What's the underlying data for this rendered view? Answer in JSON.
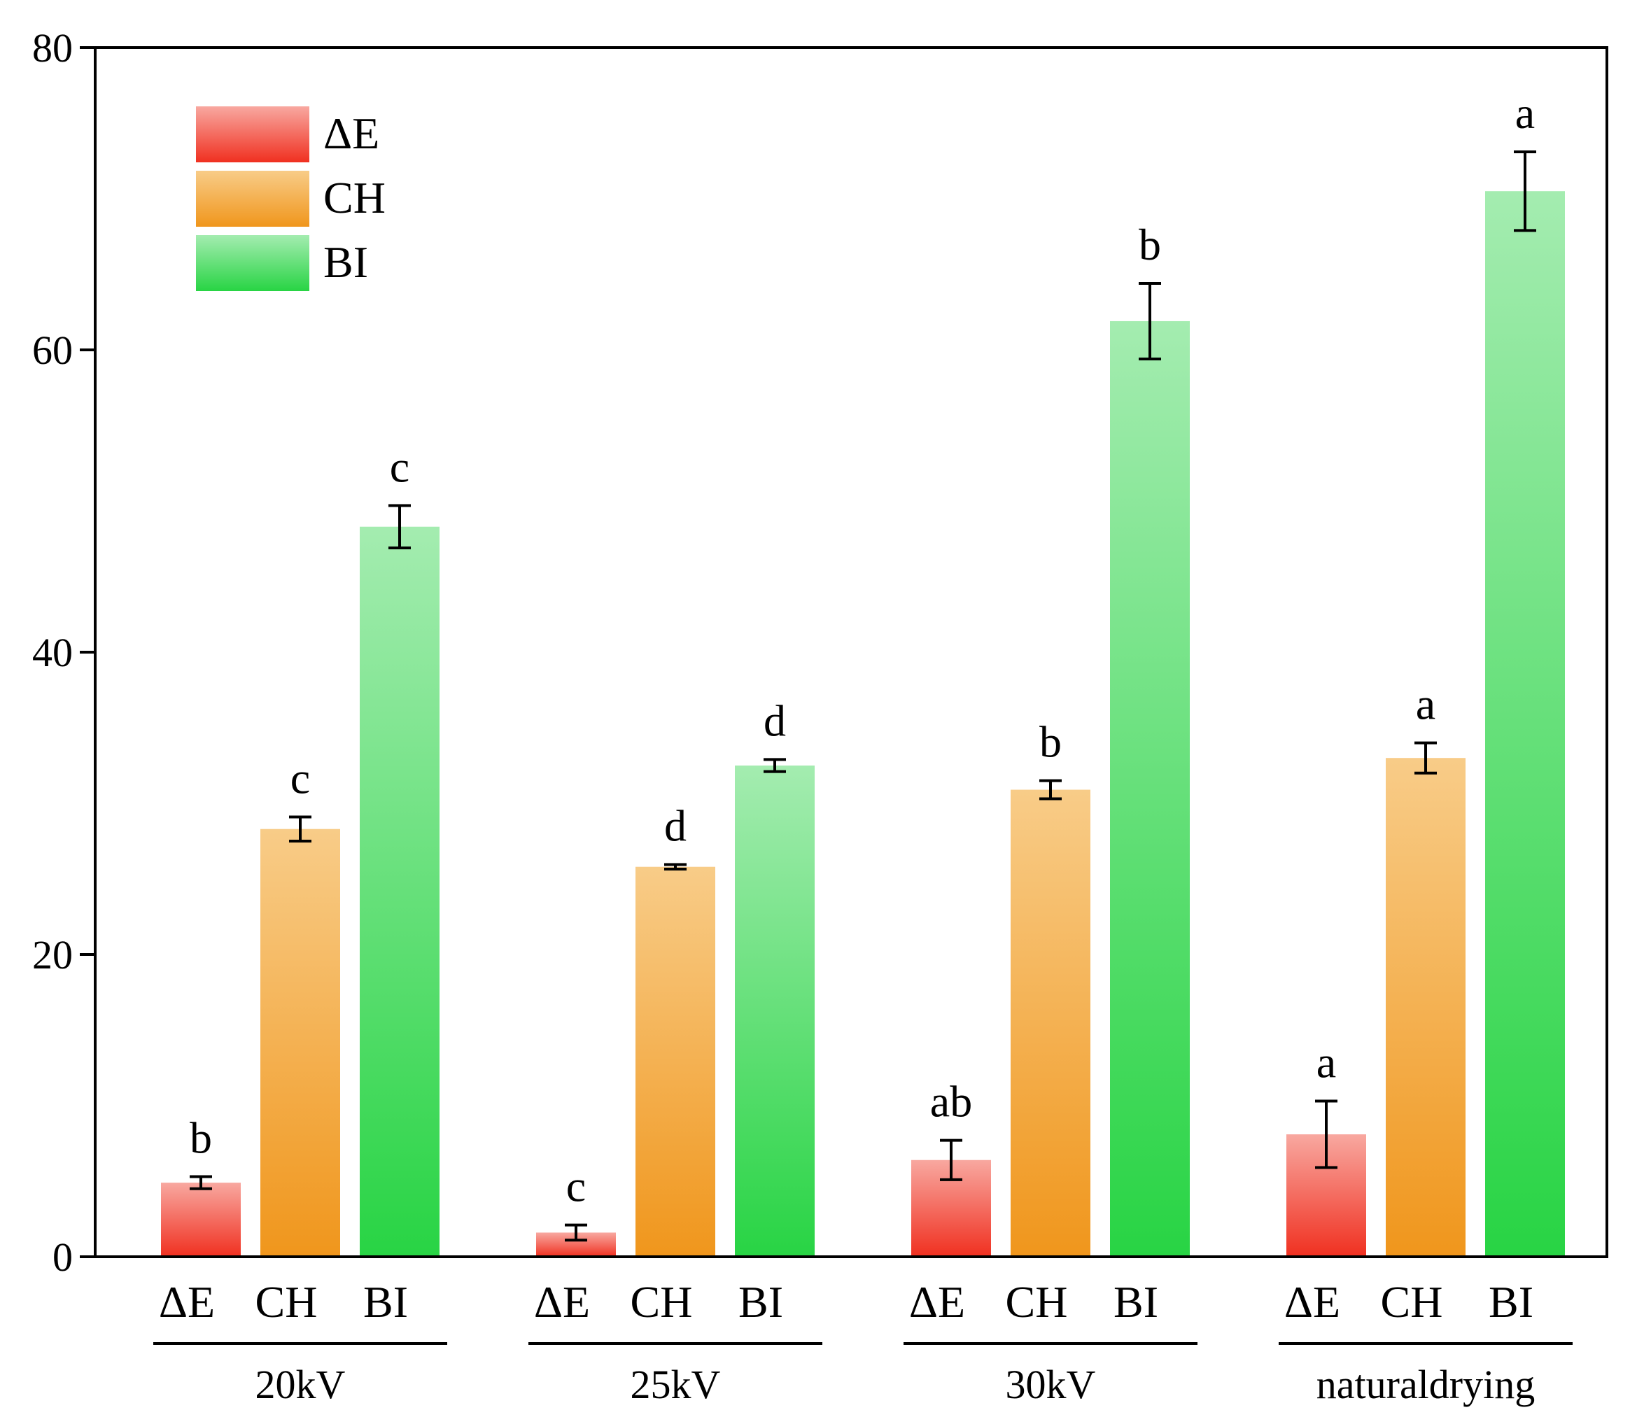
{
  "chart_data": {
    "type": "bar",
    "title": "",
    "xlabel": "",
    "ylabel": "",
    "ylim": [
      0,
      80
    ],
    "yticks": [
      0,
      20,
      40,
      60,
      80
    ],
    "groups": [
      "20kV",
      "25kV",
      "30kV",
      "naturaldrying"
    ],
    "legend_position": "top-left",
    "series": [
      {
        "name": "ΔE",
        "color_top": "#f8a8a0",
        "color_bottom": "#f03020",
        "values": [
          4.9,
          1.6,
          6.4,
          8.1
        ],
        "errors": [
          0.4,
          0.5,
          1.3,
          2.2
        ],
        "labels": [
          "b",
          "c",
          "ab",
          "a"
        ]
      },
      {
        "name": "CH",
        "color_top": "#f8cc88",
        "color_bottom": "#f0961c",
        "values": [
          28.3,
          25.8,
          30.9,
          33.0
        ],
        "errors": [
          0.8,
          0.15,
          0.6,
          1.0
        ],
        "labels": [
          "c",
          "d",
          "b",
          "a"
        ]
      },
      {
        "name": "BI",
        "color_top": "#a4ecb0",
        "color_bottom": "#28d444",
        "values": [
          48.3,
          32.5,
          61.9,
          70.5
        ],
        "errors": [
          1.4,
          0.4,
          2.5,
          2.6
        ],
        "labels": [
          "c",
          "d",
          "b",
          "a"
        ]
      }
    ]
  }
}
